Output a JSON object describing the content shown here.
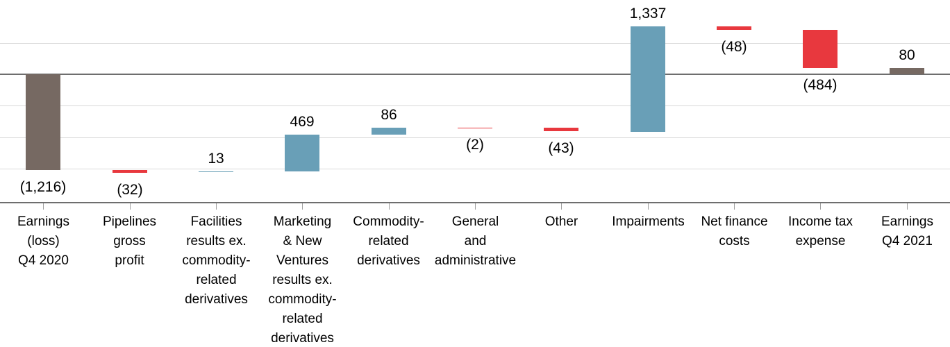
{
  "chart_data": {
    "type": "bar",
    "subtype": "waterfall",
    "title": "",
    "xlabel": "",
    "ylabel": "",
    "legend": "none",
    "layout_hints": {
      "gridlines": "horizontal",
      "value_axis_labels": "hidden",
      "tick_marks": "category-centers",
      "visible_value_range_approx": [
        -1600,
        800
      ],
      "gridline_step": 400
    },
    "gridline_values": [
      400,
      -400,
      -800,
      -1200
    ],
    "zero_line_value": 0,
    "categories": [
      "Earnings (loss) Q4 2020",
      "Pipelines gross profit",
      "Facilities results ex. commodity-related derivatives",
      "Marketing & New Ventures results ex. commodity-related derivatives",
      "Commodity-related derivatives",
      "General and administrative",
      "Other",
      "Impairments",
      "Net finance costs",
      "Income tax expense",
      "Earnings Q4 2021"
    ],
    "bars": [
      {
        "category": "Earnings (loss) Q4 2020",
        "label_lines": [
          "Earnings",
          "(loss)",
          "Q4 2020"
        ],
        "value": -1216,
        "display": "(1,216)",
        "role": "total",
        "cumulative": -1216
      },
      {
        "category": "Pipelines gross profit",
        "label_lines": [
          "Pipelines",
          "gross",
          "profit"
        ],
        "value": -32,
        "display": "(32)",
        "role": "decrease",
        "cumulative": -1248
      },
      {
        "category": "Facilities results ex. commodity-related derivatives",
        "label_lines": [
          "Facilities",
          "results ex.",
          "commodity-",
          "related",
          "derivatives"
        ],
        "value": 13,
        "display": "13",
        "role": "increase",
        "cumulative": -1235
      },
      {
        "category": "Marketing & New Ventures results ex. commodity-related derivatives",
        "label_lines": [
          "Marketing",
          "& New",
          "Ventures",
          "results ex.",
          "commodity-",
          "related",
          "derivatives"
        ],
        "value": 469,
        "display": "469",
        "role": "increase",
        "cumulative": -766
      },
      {
        "category": "Commodity-related derivatives",
        "label_lines": [
          "Commodity-",
          "related",
          "derivatives"
        ],
        "value": 86,
        "display": "86",
        "role": "increase",
        "cumulative": -680
      },
      {
        "category": "General and administrative",
        "label_lines": [
          "General",
          "and",
          "administrative"
        ],
        "value": -2,
        "display": "(2)",
        "role": "decrease",
        "cumulative": -682
      },
      {
        "category": "Other",
        "label_lines": [
          "Other"
        ],
        "value": -43,
        "display": "(43)",
        "role": "decrease",
        "cumulative": -725
      },
      {
        "category": "Impairments",
        "label_lines": [
          "Impairments"
        ],
        "value": 1337,
        "display": "1,337",
        "role": "increase",
        "cumulative": 612
      },
      {
        "category": "Net finance costs",
        "label_lines": [
          "Net finance",
          "costs"
        ],
        "value": -48,
        "display": "(48)",
        "role": "decrease",
        "cumulative": 564
      },
      {
        "category": "Income tax expense",
        "label_lines": [
          "Income tax",
          "expense"
        ],
        "value": -484,
        "display": "(484)",
        "role": "decrease",
        "cumulative": 80
      },
      {
        "category": "Earnings Q4 2021",
        "label_lines": [
          "Earnings",
          "Q4 2021"
        ],
        "value": 80,
        "display": "80",
        "role": "total",
        "cumulative": 80
      }
    ],
    "colors": {
      "total": "#766962",
      "increase": "#699FB7",
      "decrease": "#E8383E",
      "gridline": "#D9D9D9",
      "zero_line": "#6E6E6E",
      "axis_line": "#6E6E6E",
      "tick": "#A0A0A0",
      "text": "#000000",
      "background": "#FFFFFF"
    }
  }
}
